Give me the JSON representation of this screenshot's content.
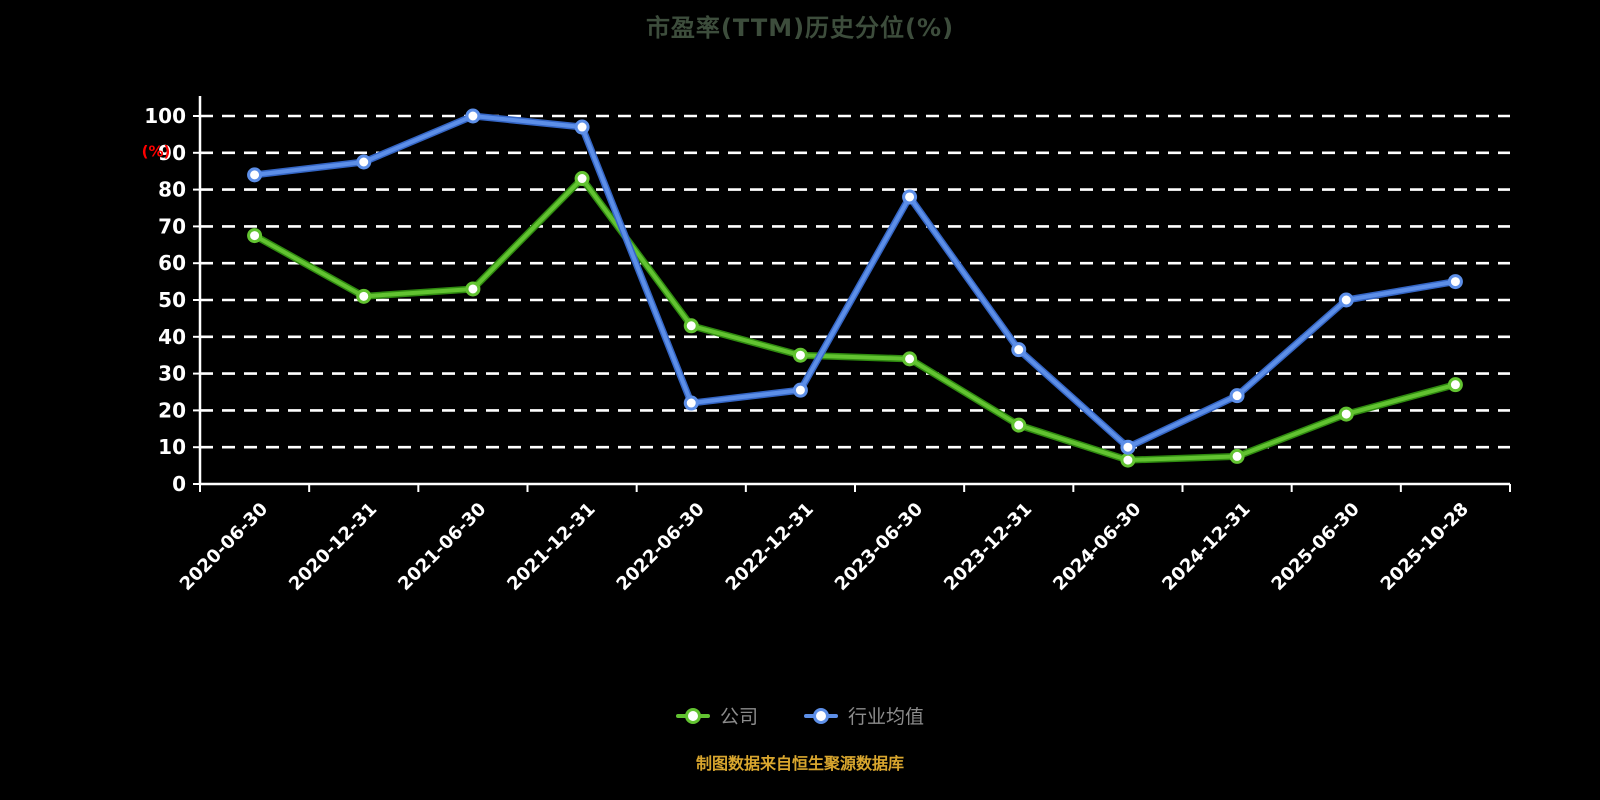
{
  "chart_data": {
    "type": "line",
    "title": "市盈率(TTM)历史分位(%)",
    "source_note": "制图数据来自恒生聚源数据库",
    "ylabel": "(%)",
    "ylim": [
      0,
      100
    ],
    "ytick_step": 10,
    "grid": true,
    "legend_position": "bottom",
    "categories": [
      "2020-06-30",
      "2020-12-31",
      "2021-06-30",
      "2021-12-31",
      "2022-06-30",
      "2022-12-31",
      "2023-06-30",
      "2023-12-31",
      "2024-06-30",
      "2024-12-31",
      "2025-06-30",
      "2025-10-28"
    ],
    "series": [
      {
        "name": "公司",
        "color": "#62c331",
        "outline": "#2f8a10",
        "values": [
          67.5,
          51,
          53,
          83,
          43,
          35,
          34,
          16,
          6.5,
          7.5,
          19,
          27
        ]
      },
      {
        "name": "行业均值",
        "color": "#5d8fe8",
        "outline": "#3465c4",
        "values": [
          84,
          87.5,
          100,
          97,
          22,
          25.5,
          78,
          36.5,
          10,
          24,
          50,
          55
        ]
      }
    ],
    "colors": {
      "background": "#000000",
      "grid": "#ffffff",
      "axis": "#ffffff",
      "tick_label": "#ffffff",
      "title": "#3d4d3c",
      "subtitle": "#d9a62e",
      "ylabel": "#ff0000",
      "legend_text": "#8c8c8c",
      "marker_fill": "#ffffff"
    }
  }
}
